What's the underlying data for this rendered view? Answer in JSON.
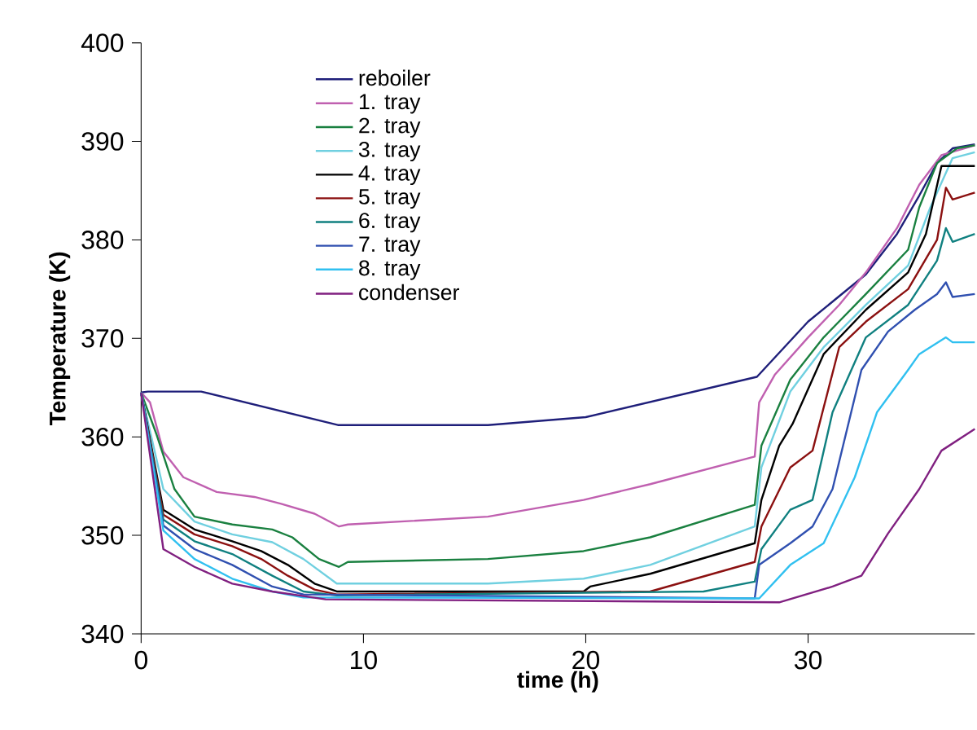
{
  "chart_data": {
    "type": "line",
    "xlabel": "time (h)",
    "ylabel": "Temperature (K)",
    "xlim": [
      0,
      37.5
    ],
    "ylim": [
      340,
      400
    ],
    "xticks": [
      0,
      10,
      20,
      30
    ],
    "yticks": [
      340,
      350,
      360,
      370,
      380,
      390,
      400
    ],
    "legend": "top left",
    "marker": "none",
    "line_style": "solid",
    "series": [
      {
        "name": "reboiler",
        "color": "#1f1f7a",
        "x": [
          0,
          0.3,
          2.7,
          8.85,
          15.6,
          20,
          27.7,
          30,
          32.6,
          34,
          35,
          35.8,
          36.5,
          37.5
        ],
        "values": [
          364.5,
          364.6,
          364.6,
          361.2,
          361.2,
          362.0,
          366.1,
          371.7,
          376.5,
          380.6,
          384.5,
          387.8,
          389.3,
          389.7
        ]
      },
      {
        "name": "1. tray",
        "color": "#c060b0",
        "x": [
          0,
          0.4,
          1.0,
          1.9,
          3.4,
          5.1,
          6.3,
          7.8,
          8.9,
          9.3,
          15.6,
          19.9,
          22.9,
          27.6,
          27.8,
          28.5,
          30,
          31.4,
          32.6,
          34,
          35,
          36,
          37.5
        ],
        "values": [
          364.5,
          363.5,
          358.5,
          355.9,
          354.4,
          353.9,
          353.2,
          352.2,
          350.9,
          351.1,
          351.9,
          353.6,
          355.2,
          358.0,
          363.5,
          366.3,
          370.1,
          373.4,
          376.7,
          381.2,
          385.6,
          388.6,
          389.6
        ]
      },
      {
        "name": "2. tray",
        "color": "#1a8040",
        "x": [
          0,
          0.7,
          1.5,
          2.4,
          4.1,
          5.9,
          6.8,
          8.0,
          8.9,
          9.3,
          15.6,
          19.9,
          22.9,
          27.6,
          27.9,
          29.2,
          30.7,
          32.6,
          34.5,
          35,
          35.8,
          36.7,
          37.5
        ],
        "values": [
          364.5,
          360.2,
          354.7,
          351.9,
          351.1,
          350.6,
          349.8,
          347.6,
          346.8,
          347.3,
          347.6,
          348.4,
          349.8,
          353.1,
          359.1,
          365.8,
          370.1,
          374.5,
          379.0,
          383.3,
          387.8,
          389.3,
          389.6
        ]
      },
      {
        "name": "3. tray",
        "color": "#70d0e0",
        "x": [
          0,
          1.0,
          2.4,
          4.1,
          5.9,
          7.3,
          8.8,
          15.6,
          19.9,
          22.9,
          27.6,
          27.9,
          29.2,
          30.7,
          32.6,
          34.5,
          35.5,
          36.5,
          37.5
        ],
        "values": [
          364.5,
          354.7,
          351.4,
          350.1,
          349.3,
          347.6,
          345.1,
          345.1,
          345.6,
          347.0,
          350.9,
          356.9,
          364.6,
          369.1,
          373.4,
          377.4,
          383.3,
          388.3,
          388.9
        ]
      },
      {
        "name": "4. tray",
        "color": "#000000",
        "x": [
          0,
          1.0,
          2.4,
          4.1,
          5.4,
          6.6,
          7.8,
          8.8,
          15.6,
          19.9,
          20.2,
          22.9,
          27.6,
          27.9,
          28.7,
          29.3,
          30.7,
          32.6,
          34.5,
          35.3,
          36,
          37.5
        ],
        "values": [
          364.5,
          352.6,
          350.6,
          349.4,
          348.4,
          347.0,
          345.1,
          344.3,
          344.3,
          344.3,
          344.8,
          346.1,
          349.2,
          353.6,
          359.1,
          361.3,
          368.4,
          372.9,
          376.7,
          380.6,
          387.5,
          387.5
        ]
      },
      {
        "name": "5. tray",
        "color": "#8b1010",
        "x": [
          0,
          1.0,
          2.4,
          4.1,
          5.4,
          6.6,
          7.8,
          8.8,
          22.9,
          27.6,
          27.9,
          29.2,
          30.2,
          31.4,
          32.6,
          34.5,
          35.8,
          36.2,
          36.5,
          37.5
        ],
        "values": [
          364.5,
          352.1,
          350.1,
          348.9,
          347.6,
          345.9,
          344.5,
          344.0,
          344.3,
          347.3,
          350.9,
          356.9,
          358.6,
          369.1,
          371.7,
          375.0,
          380.0,
          385.3,
          384.1,
          384.8
        ]
      },
      {
        "name": "6. tray",
        "color": "#108080",
        "x": [
          0,
          1.0,
          2.4,
          4.1,
          5.9,
          7.3,
          8.8,
          25.3,
          27.6,
          27.9,
          29.2,
          30.2,
          31.1,
          32.6,
          34.5,
          35.8,
          36.2,
          36.5,
          37.5
        ],
        "values": [
          364.5,
          351.6,
          349.4,
          348.1,
          345.9,
          344.3,
          343.9,
          344.3,
          345.3,
          348.6,
          352.6,
          353.6,
          362.5,
          370.1,
          373.4,
          377.9,
          381.2,
          379.8,
          380.6
        ]
      },
      {
        "name": "7. tray",
        "color": "#3050b0",
        "x": [
          0,
          1.0,
          2.4,
          4.1,
          5.9,
          7.3,
          27.6,
          27.8,
          29.2,
          30.2,
          31.1,
          32.4,
          33.6,
          34.8,
          35.8,
          36.2,
          36.5,
          37.5
        ],
        "values": [
          364.5,
          351.0,
          348.6,
          347.0,
          344.8,
          344.0,
          343.6,
          347.0,
          349.2,
          350.9,
          354.7,
          366.8,
          370.7,
          372.9,
          374.5,
          375.7,
          374.2,
          374.5
        ]
      },
      {
        "name": "8. tray",
        "color": "#30c0f0",
        "x": [
          0,
          1.0,
          2.4,
          4.1,
          5.9,
          7.3,
          27.8,
          29.2,
          30.7,
          32.1,
          33.1,
          34.5,
          35,
          36.2,
          36.5,
          37.5
        ],
        "values": [
          364.5,
          350.5,
          347.6,
          345.6,
          344.3,
          343.7,
          343.6,
          347.0,
          349.2,
          355.9,
          362.5,
          366.8,
          368.4,
          370.1,
          369.6,
          369.6
        ]
      },
      {
        "name": "condenser",
        "color": "#802080",
        "x": [
          0,
          1.0,
          2.4,
          4.1,
          5.9,
          8.3,
          28.7,
          31.1,
          32.4,
          33.6,
          35,
          36,
          37.5
        ],
        "values": [
          364.5,
          348.6,
          346.8,
          345.1,
          344.3,
          343.5,
          343.2,
          344.8,
          345.9,
          350.2,
          354.7,
          358.6,
          360.8
        ]
      }
    ]
  }
}
